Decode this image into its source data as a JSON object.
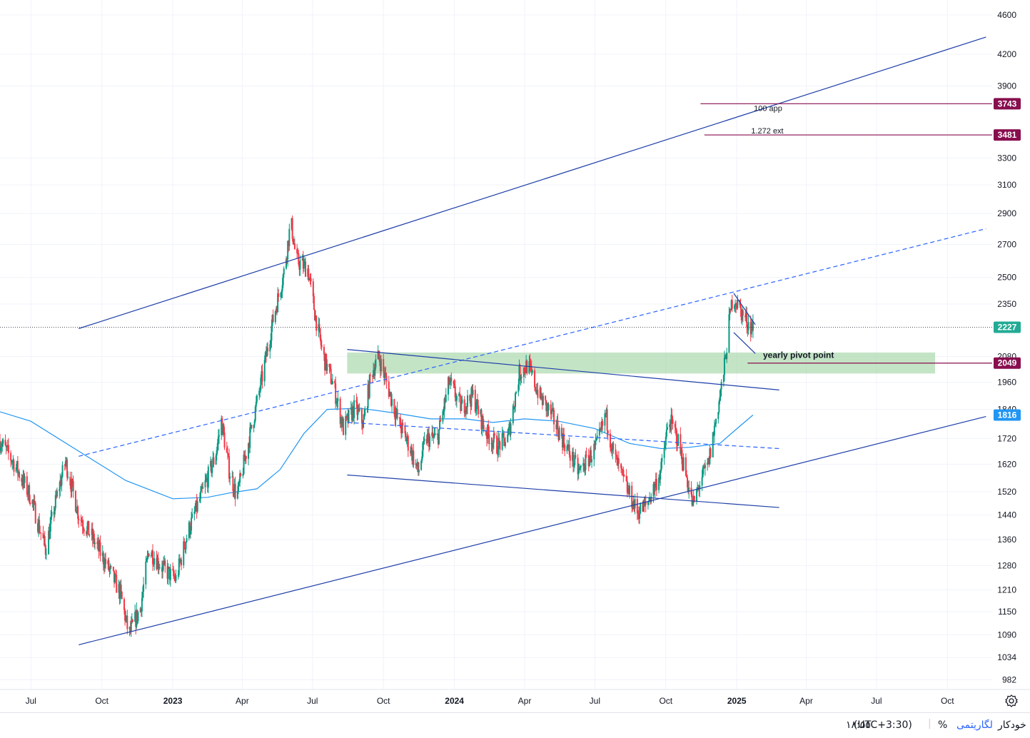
{
  "chart_data": {
    "type": "candlestick",
    "y_scale": "log",
    "ylim": [
      960,
      4700
    ],
    "xlim": [
      "2022-05-22",
      "2025-11-28"
    ],
    "y_ticks": [
      "4600",
      "4200",
      "3900",
      "3743",
      "3481",
      "3300",
      "3100",
      "2900",
      "2700",
      "2500",
      "2350",
      "2227",
      "2080",
      "2049",
      "1960",
      "1840",
      "1816",
      "1720",
      "1620",
      "1520",
      "1440",
      "1360",
      "1280",
      "1210",
      "1150",
      "1090",
      "1034",
      "982"
    ],
    "x_ticks": [
      {
        "label": "Jul",
        "date": "2022-07-01",
        "bold": false
      },
      {
        "label": "Oct",
        "date": "2022-10-01",
        "bold": false
      },
      {
        "label": "2023",
        "date": "2023-01-01",
        "bold": true
      },
      {
        "label": "Apr",
        "date": "2023-04-01",
        "bold": false
      },
      {
        "label": "Jul",
        "date": "2023-07-01",
        "bold": false
      },
      {
        "label": "Oct",
        "date": "2023-10-01",
        "bold": false
      },
      {
        "label": "2024",
        "date": "2024-01-01",
        "bold": true
      },
      {
        "label": "Apr",
        "date": "2024-04-01",
        "bold": false
      },
      {
        "label": "Jul",
        "date": "2024-07-01",
        "bold": false
      },
      {
        "label": "Oct",
        "date": "2024-10-01",
        "bold": false
      },
      {
        "label": "2025",
        "date": "2025-01-01",
        "bold": true
      },
      {
        "label": "Apr",
        "date": "2025-04-01",
        "bold": false
      },
      {
        "label": "Jul",
        "date": "2025-07-01",
        "bold": false
      },
      {
        "label": "Oct",
        "date": "2025-10-01",
        "bold": false
      }
    ],
    "price_path": [
      [
        "2022-05-22",
        1710
      ],
      [
        "2022-06-10",
        1620
      ],
      [
        "2022-07-01",
        1500
      ],
      [
        "2022-07-20",
        1330
      ],
      [
        "2022-08-05",
        1520
      ],
      [
        "2022-08-15",
        1630
      ],
      [
        "2022-09-01",
        1440
      ],
      [
        "2022-09-20",
        1360
      ],
      [
        "2022-10-10",
        1270
      ],
      [
        "2022-10-25",
        1200
      ],
      [
        "2022-11-05",
        1090
      ],
      [
        "2022-11-20",
        1160
      ],
      [
        "2022-12-01",
        1330
      ],
      [
        "2022-12-20",
        1270
      ],
      [
        "2023-01-05",
        1240
      ],
      [
        "2023-01-20",
        1380
      ],
      [
        "2023-02-10",
        1530
      ],
      [
        "2023-02-25",
        1650
      ],
      [
        "2023-03-05",
        1790
      ],
      [
        "2023-03-15",
        1600
      ],
      [
        "2023-03-25",
        1500
      ],
      [
        "2023-04-10",
        1720
      ],
      [
        "2023-04-25",
        1950
      ],
      [
        "2023-05-10",
        2250
      ],
      [
        "2023-05-25",
        2530
      ],
      [
        "2023-06-03",
        2850
      ],
      [
        "2023-06-10",
        2600
      ],
      [
        "2023-06-25",
        2550
      ],
      [
        "2023-07-05",
        2280
      ],
      [
        "2023-07-15",
        2080
      ],
      [
        "2023-07-28",
        1950
      ],
      [
        "2023-08-10",
        1760
      ],
      [
        "2023-08-25",
        1850
      ],
      [
        "2023-09-05",
        1780
      ],
      [
        "2023-09-15",
        2000
      ],
      [
        "2023-09-25",
        2080
      ],
      [
        "2023-10-05",
        1960
      ],
      [
        "2023-10-20",
        1790
      ],
      [
        "2023-11-05",
        1680
      ],
      [
        "2023-11-15",
        1590
      ],
      [
        "2023-11-25",
        1720
      ],
      [
        "2023-12-10",
        1720
      ],
      [
        "2023-12-25",
        1960
      ],
      [
        "2024-01-10",
        1850
      ],
      [
        "2024-01-25",
        1900
      ],
      [
        "2024-02-10",
        1750
      ],
      [
        "2024-02-25",
        1690
      ],
      [
        "2024-03-10",
        1720
      ],
      [
        "2024-03-25",
        2000
      ],
      [
        "2024-04-05",
        2040
      ],
      [
        "2024-04-20",
        1900
      ],
      [
        "2024-05-05",
        1820
      ],
      [
        "2024-05-20",
        1720
      ],
      [
        "2024-06-10",
        1590
      ],
      [
        "2024-06-25",
        1650
      ],
      [
        "2024-07-05",
        1700
      ],
      [
        "2024-07-15",
        1820
      ],
      [
        "2024-07-25",
        1660
      ],
      [
        "2024-08-10",
        1540
      ],
      [
        "2024-08-25",
        1450
      ],
      [
        "2024-09-05",
        1470
      ],
      [
        "2024-09-15",
        1530
      ],
      [
        "2024-09-25",
        1600
      ],
      [
        "2024-10-05",
        1800
      ],
      [
        "2024-10-15",
        1730
      ],
      [
        "2024-10-25",
        1610
      ],
      [
        "2024-11-05",
        1470
      ],
      [
        "2024-11-15",
        1560
      ],
      [
        "2024-11-25",
        1620
      ],
      [
        "2024-12-05",
        1800
      ],
      [
        "2024-12-15",
        2000
      ],
      [
        "2024-12-22",
        2250
      ],
      [
        "2024-12-27",
        2400
      ],
      [
        "2025-01-05",
        2320
      ],
      [
        "2025-01-15",
        2250
      ],
      [
        "2025-01-22",
        2227
      ]
    ],
    "moving_average": [
      [
        "2022-05-22",
        1830
      ],
      [
        "2022-07-01",
        1790
      ],
      [
        "2022-09-01",
        1670
      ],
      [
        "2022-11-01",
        1560
      ],
      [
        "2023-01-01",
        1495
      ],
      [
        "2023-02-15",
        1500
      ],
      [
        "2023-03-15",
        1515
      ],
      [
        "2023-04-20",
        1530
      ],
      [
        "2023-05-20",
        1600
      ],
      [
        "2023-06-20",
        1740
      ],
      [
        "2023-07-20",
        1840
      ],
      [
        "2023-09-01",
        1845
      ],
      [
        "2023-10-15",
        1825
      ],
      [
        "2023-12-01",
        1800
      ],
      [
        "2024-01-15",
        1800
      ],
      [
        "2024-02-20",
        1785
      ],
      [
        "2024-04-01",
        1800
      ],
      [
        "2024-05-15",
        1790
      ],
      [
        "2024-07-01",
        1760
      ],
      [
        "2024-08-15",
        1700
      ],
      [
        "2024-09-25",
        1680
      ],
      [
        "2024-11-01",
        1685
      ],
      [
        "2024-12-10",
        1700
      ],
      [
        "2025-01-05",
        1770
      ],
      [
        "2025-01-22",
        1816
      ]
    ],
    "lines": [
      {
        "name": "channel-upper",
        "style": "solid",
        "points": [
          [
            "2022-09-01",
            2220
          ],
          [
            "2025-11-20",
            4370
          ]
        ]
      },
      {
        "name": "channel-lower",
        "style": "solid",
        "points": [
          [
            "2022-09-01",
            1065
          ],
          [
            "2025-11-20",
            1810
          ]
        ]
      },
      {
        "name": "channel-mid",
        "style": "dashed",
        "points": [
          [
            "2022-09-01",
            1650
          ],
          [
            "2025-11-20",
            2800
          ]
        ]
      },
      {
        "name": "range-top",
        "style": "solid",
        "points": [
          [
            "2023-08-15",
            2115
          ],
          [
            "2025-02-25",
            1925
          ]
        ]
      },
      {
        "name": "range-bottom",
        "style": "solid",
        "points": [
          [
            "2023-08-15",
            1580
          ],
          [
            "2025-02-25",
            1465
          ]
        ]
      },
      {
        "name": "range-mid",
        "style": "dashed",
        "points": [
          [
            "2023-08-15",
            1785
          ],
          [
            "2025-02-25",
            1680
          ]
        ]
      },
      {
        "name": "flag-top",
        "style": "solid",
        "points": [
          [
            "2024-12-28",
            2410
          ],
          [
            "2025-01-25",
            2240
          ]
        ]
      },
      {
        "name": "flag-bottom",
        "style": "solid",
        "points": [
          [
            "2024-12-28",
            2200
          ],
          [
            "2025-01-25",
            2095
          ]
        ]
      }
    ],
    "levels": [
      {
        "value": 3743,
        "label": "100 app",
        "from": "2024-11-15"
      },
      {
        "value": 3481,
        "label": "1.272 ext",
        "from": "2024-11-20"
      },
      {
        "value": 2049,
        "label": "yearly pivot point",
        "from": "2025-01-15",
        "to": "2025-09-15"
      }
    ],
    "zone": {
      "from": "2023-08-15",
      "to": "2025-09-15",
      "low": 2000,
      "high": 2100
    },
    "last_price": 2227,
    "ma_last": 1816,
    "colors": {
      "up": "#089981",
      "down": "#f23645",
      "ma": "#2196f3",
      "drawing": "#1e3fa8",
      "dashed": "#2962ff",
      "level": "#880e4f",
      "zone": "#a5d6a7",
      "last_price": "#22ab94",
      "ma_label": "#2196f3"
    }
  },
  "footer": {
    "auto": "خودکار",
    "log": "لگاریتمی",
    "percent": "%",
    "timezone": "(UTC+3:30)",
    "clock": "۱۸:۵۵"
  }
}
